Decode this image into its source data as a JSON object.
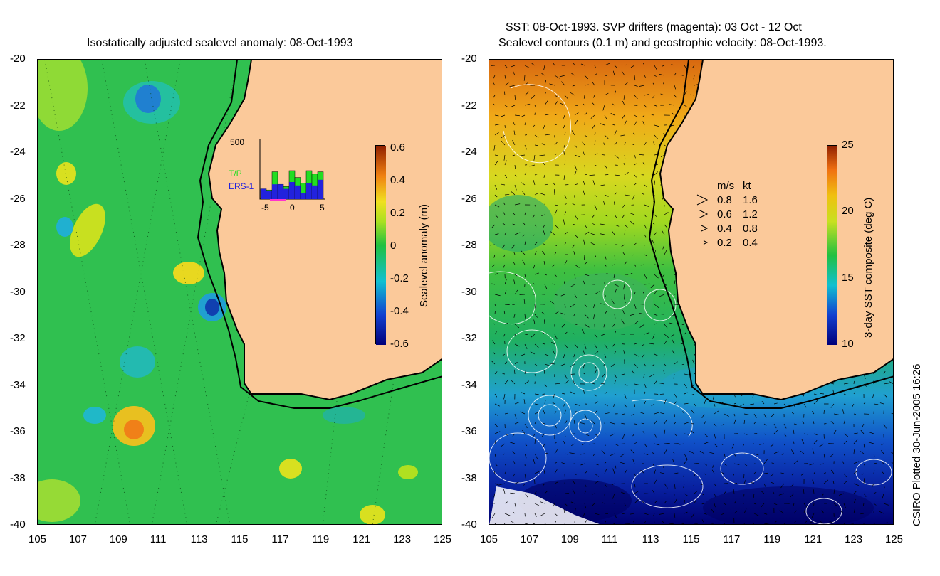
{
  "left_panel": {
    "title": "Isostatically adjusted sealevel anomaly: 08-Oct-1993",
    "y_ticks": [
      "-20",
      "-22",
      "-24",
      "-26",
      "-28",
      "-30",
      "-32",
      "-34",
      "-36",
      "-38",
      "-40"
    ],
    "x_ticks": [
      "105",
      "107",
      "109",
      "111",
      "113",
      "115",
      "117",
      "119",
      "121",
      "123",
      "125"
    ],
    "colorbar": {
      "label": "Sealevel anomaly (m)",
      "ticks": [
        "0.6",
        "0.4",
        "0.2",
        "0",
        "-0.2",
        "-0.4",
        "-0.6"
      ]
    },
    "inset": {
      "y_label": "500",
      "legend_tp": "T/P",
      "legend_ers": "ERS-1",
      "x_ticks": [
        "-5",
        "0",
        "5"
      ],
      "bars_total": [
        0.18,
        0.16,
        0.48,
        0.26,
        0.22,
        0.5,
        0.38,
        0.28,
        0.5,
        0.44,
        0.48
      ],
      "bars_ers": [
        0.18,
        0.14,
        0.26,
        0.26,
        0.18,
        0.3,
        0.24,
        0.1,
        0.28,
        0.24,
        0.34
      ],
      "colors": {
        "tp": "#22dd22",
        "ers": "#2222dd",
        "drifter": "#ff33cc"
      }
    }
  },
  "right_panel": {
    "title_line1": "SST: 08-Oct-1993. SVP drifters (magenta): 03 Oct - 12 Oct",
    "title_line2": "Sealevel contours (0.1 m) and geostrophic velocity: 08-Oct-1993.",
    "y_ticks": [
      "-20",
      "-22",
      "-24",
      "-26",
      "-28",
      "-30",
      "-32",
      "-34",
      "-36",
      "-38",
      "-40"
    ],
    "x_ticks": [
      "105",
      "107",
      "109",
      "111",
      "113",
      "115",
      "117",
      "119",
      "121",
      "123",
      "125"
    ],
    "colorbar": {
      "label": "3-day SST composite (deg C)",
      "ticks": [
        "25",
        "20",
        "15",
        "10"
      ]
    },
    "velocity_legend": {
      "header_ms": "m/s",
      "header_kt": "kt",
      "rows": [
        {
          "ms": "0.8",
          "kt": "1.6"
        },
        {
          "ms": "0.6",
          "kt": "1.2"
        },
        {
          "ms": "0.4",
          "kt": "0.8"
        },
        {
          "ms": "0.2",
          "kt": "0.4"
        }
      ]
    }
  },
  "credit": "CSIRO Plotted 30-Jun-2005 16:26",
  "colors": {
    "land": "#fbc99a",
    "coast": "#000000"
  }
}
